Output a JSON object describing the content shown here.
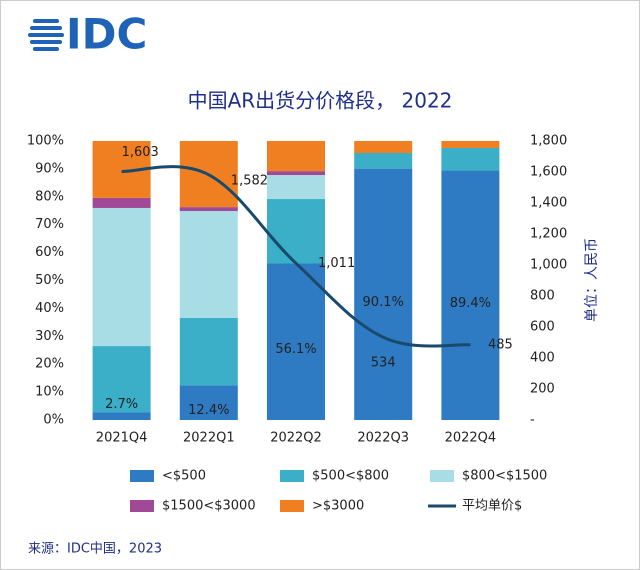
{
  "header": {
    "logo": "IDC"
  },
  "chart_data": {
    "type": "bar",
    "stacked": true,
    "title": "中国AR出货分价格段， 2022",
    "y2_label": "单位：人民币",
    "categories": [
      "2021Q4",
      "2022Q1",
      "2022Q2",
      "2022Q3",
      "2022Q4"
    ],
    "series": [
      {
        "name": "<$500",
        "color": "#2e7bc4",
        "values": [
          2.7,
          12.4,
          56.1,
          90.1,
          89.4
        ],
        "value_labels": [
          "2.7%",
          "12.4%",
          "56.1%",
          "90.1%",
          "89.4%"
        ]
      },
      {
        "name": "$500<$800",
        "color": "#3aafc7",
        "values": [
          23.8,
          24.2,
          23.1,
          5.6,
          8.1
        ]
      },
      {
        "name": "$800<$1500",
        "color": "#a8dde6",
        "values": [
          49.5,
          38.3,
          8.6,
          0,
          0
        ]
      },
      {
        "name": "$1500<$3000",
        "color": "#a04a97",
        "values": [
          3.6,
          1.4,
          1.4,
          0,
          0
        ]
      },
      {
        "name": ">$3000",
        "color": "#f07f22",
        "values": [
          20.4,
          23.7,
          10.8,
          4.3,
          2.5
        ]
      },
      {
        "name": "平均单价$",
        "type": "line",
        "axis": "y2",
        "color": "#1a4a6b",
        "values": [
          1603,
          1582,
          1011,
          534,
          485
        ],
        "value_labels": [
          "1,603",
          "1,582",
          "1,011",
          "534",
          "485"
        ]
      }
    ],
    "ylim": [
      0,
      100
    ],
    "yticks": [
      {
        "value": 0,
        "label": "0%"
      },
      {
        "value": 10,
        "label": "10%"
      },
      {
        "value": 20,
        "label": "20%"
      },
      {
        "value": 30,
        "label": "30%"
      },
      {
        "value": 40,
        "label": "40%"
      },
      {
        "value": 50,
        "label": "50%"
      },
      {
        "value": 60,
        "label": "60%"
      },
      {
        "value": 70,
        "label": "70%"
      },
      {
        "value": 80,
        "label": "80%"
      },
      {
        "value": 90,
        "label": "90%"
      },
      {
        "value": 100,
        "label": "100%"
      }
    ],
    "y2lim": [
      0,
      1800
    ],
    "y2ticks": [
      {
        "value": 0,
        "label": "-"
      },
      200,
      400,
      600,
      800,
      {
        "value": 1000,
        "label": "1,000"
      },
      {
        "value": 1200,
        "label": "1,200"
      },
      {
        "value": 1400,
        "label": "1,400"
      },
      {
        "value": 1600,
        "label": "1,600"
      },
      {
        "value": 1800,
        "label": "1,800"
      }
    ],
    "source": "来源：IDC中国，2023"
  }
}
